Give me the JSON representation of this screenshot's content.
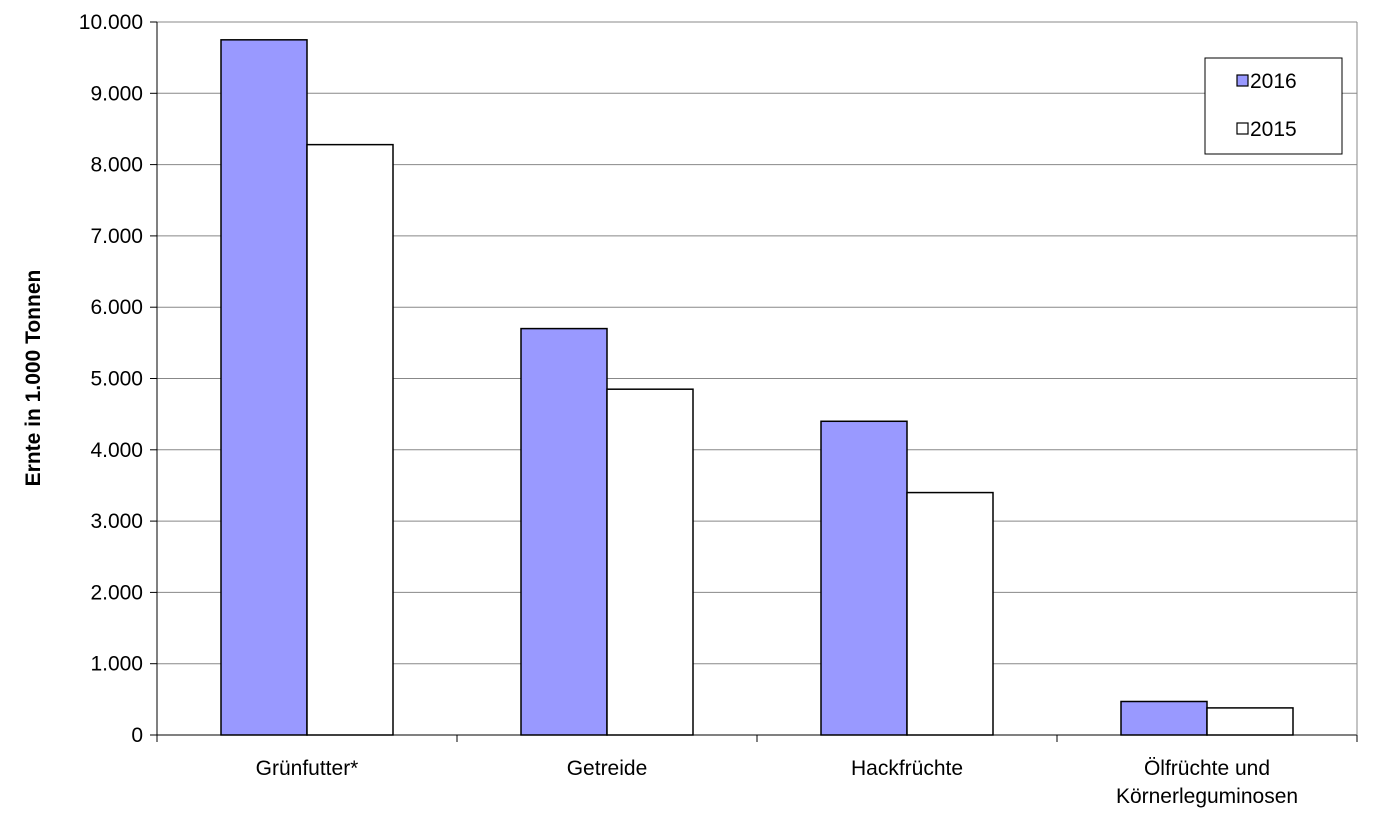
{
  "chart_data": {
    "type": "bar",
    "title": "",
    "xlabel": "",
    "ylabel": "Ernte in 1.000 Tonnen",
    "ylim": [
      0,
      10000
    ],
    "y_ticks": [
      "0",
      "1.000",
      "2.000",
      "3.000",
      "4.000",
      "5.000",
      "6.000",
      "7.000",
      "8.000",
      "9.000",
      "10.000"
    ],
    "categories": [
      [
        "Grünfutter*"
      ],
      [
        "Getreide"
      ],
      [
        "Hackfrüchte"
      ],
      [
        "Ölfrüchte und",
        "Körnerleguminosen"
      ]
    ],
    "series": [
      {
        "name": "2016",
        "values": [
          9750,
          5700,
          4400,
          470
        ],
        "color": "#9999ff"
      },
      {
        "name": "2015",
        "values": [
          8280,
          4850,
          3400,
          380
        ],
        "color": "#ffffff"
      }
    ],
    "grid": true,
    "legend_position": "top-right"
  }
}
